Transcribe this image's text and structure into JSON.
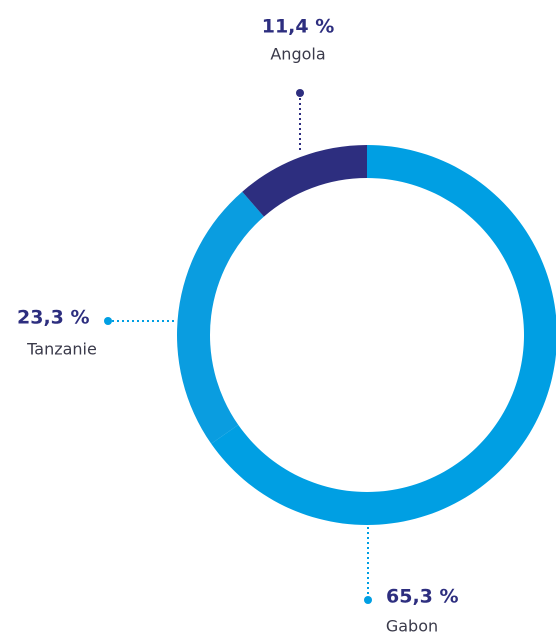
{
  "chart_data": {
    "type": "pie",
    "categories": [
      "Gabon",
      "Tanzanie",
      "Angola"
    ],
    "values": [
      65.3,
      23.3,
      11.4
    ],
    "value_labels": [
      "65,3 %",
      "23,3 %",
      "11,4 %"
    ],
    "colors": [
      "#009fe3",
      "#0a9de0",
      "#2d2e7f"
    ]
  }
}
